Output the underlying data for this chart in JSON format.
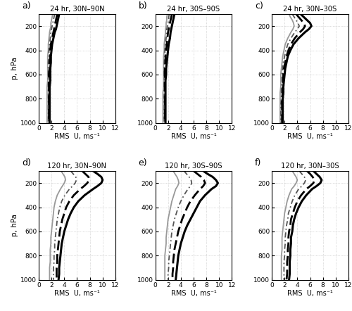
{
  "titles": [
    "24 hr, 30N–90N",
    "24 hr, 30S–90S",
    "24 hr, 30N–30S",
    "120 hr, 30N–90N",
    "120 hr, 30S–90S",
    "120 hr, 30N–30S"
  ],
  "panel_labels": [
    "a)",
    "b)",
    "c)",
    "d)",
    "e)",
    "f)"
  ],
  "pressure_levels": [
    100,
    125,
    150,
    175,
    200,
    225,
    250,
    300,
    350,
    400,
    450,
    500,
    550,
    600,
    650,
    700,
    750,
    800,
    850,
    900,
    950,
    1000
  ],
  "xlabel": "RMS  U, ms⁻¹",
  "ylabel": "p, hPa",
  "xlim": [
    0,
    12
  ],
  "ylim": [
    1000,
    100
  ],
  "xticks": [
    0,
    2,
    4,
    6,
    8,
    10,
    12
  ],
  "yticks": [
    200,
    400,
    600,
    800,
    1000
  ],
  "data": {
    "a": {
      "line1": [
        3.2,
        3.1,
        3.0,
        2.9,
        2.8,
        2.7,
        2.5,
        2.3,
        2.1,
        2.0,
        1.9,
        1.9,
        1.8,
        1.8,
        1.8,
        1.7,
        1.7,
        1.7,
        1.7,
        1.7,
        1.7,
        1.7
      ],
      "line2": [
        2.9,
        2.8,
        2.7,
        2.6,
        2.5,
        2.4,
        2.3,
        2.1,
        1.9,
        1.8,
        1.8,
        1.7,
        1.7,
        1.6,
        1.6,
        1.6,
        1.6,
        1.6,
        1.6,
        1.6,
        1.6,
        1.6
      ],
      "line3": [
        2.5,
        2.4,
        2.3,
        2.2,
        2.1,
        2.0,
        1.9,
        1.8,
        1.7,
        1.6,
        1.6,
        1.5,
        1.5,
        1.5,
        1.5,
        1.5,
        1.5,
        1.5,
        1.5,
        1.5,
        1.5,
        1.5
      ],
      "line4": [
        2.2,
        2.1,
        2.0,
        1.9,
        1.9,
        1.8,
        1.7,
        1.6,
        1.5,
        1.5,
        1.4,
        1.4,
        1.4,
        1.4,
        1.4,
        1.3,
        1.3,
        1.3,
        1.3,
        1.3,
        1.3,
        1.3
      ]
    },
    "b": {
      "line1": [
        3.0,
        2.9,
        2.8,
        2.7,
        2.6,
        2.5,
        2.4,
        2.3,
        2.1,
        2.0,
        1.9,
        1.8,
        1.7,
        1.7,
        1.6,
        1.6,
        1.6,
        1.6,
        1.6,
        1.6,
        1.6,
        1.6
      ],
      "line2": [
        2.6,
        2.5,
        2.4,
        2.3,
        2.2,
        2.1,
        2.0,
        1.9,
        1.8,
        1.7,
        1.6,
        1.6,
        1.5,
        1.5,
        1.5,
        1.5,
        1.5,
        1.5,
        1.5,
        1.5,
        1.5,
        1.5
      ],
      "line3": [
        2.2,
        2.1,
        2.1,
        2.0,
        1.9,
        1.8,
        1.8,
        1.7,
        1.6,
        1.5,
        1.5,
        1.4,
        1.4,
        1.4,
        1.4,
        1.4,
        1.4,
        1.4,
        1.4,
        1.4,
        1.4,
        1.4
      ],
      "line4": [
        1.9,
        1.8,
        1.8,
        1.7,
        1.7,
        1.6,
        1.6,
        1.5,
        1.4,
        1.4,
        1.3,
        1.3,
        1.3,
        1.3,
        1.3,
        1.3,
        1.2,
        1.2,
        1.2,
        1.2,
        1.2,
        1.2
      ]
    },
    "c": {
      "line1": [
        4.5,
        5.0,
        5.5,
        6.0,
        6.2,
        5.8,
        5.2,
        4.2,
        3.4,
        2.9,
        2.5,
        2.3,
        2.1,
        2.0,
        1.9,
        1.8,
        1.8,
        1.7,
        1.7,
        1.7,
        1.7,
        1.7
      ],
      "line2": [
        3.8,
        4.2,
        4.6,
        5.0,
        5.2,
        4.9,
        4.4,
        3.6,
        3.0,
        2.6,
        2.3,
        2.1,
        1.9,
        1.8,
        1.8,
        1.7,
        1.7,
        1.6,
        1.6,
        1.6,
        1.6,
        1.6
      ],
      "line3": [
        3.2,
        3.5,
        3.8,
        4.1,
        4.3,
        4.0,
        3.6,
        3.0,
        2.5,
        2.2,
        2.0,
        1.8,
        1.7,
        1.6,
        1.6,
        1.5,
        1.5,
        1.5,
        1.4,
        1.4,
        1.4,
        1.4
      ],
      "line4": [
        2.7,
        2.9,
        3.2,
        3.4,
        3.5,
        3.3,
        3.0,
        2.5,
        2.1,
        1.9,
        1.7,
        1.6,
        1.5,
        1.4,
        1.4,
        1.4,
        1.3,
        1.3,
        1.3,
        1.3,
        1.3,
        1.3
      ]
    },
    "d": {
      "line1": [
        8.5,
        9.2,
        9.8,
        10.0,
        9.8,
        9.2,
        8.5,
        7.2,
        6.2,
        5.5,
        5.0,
        4.6,
        4.3,
        4.0,
        3.8,
        3.6,
        3.5,
        3.4,
        3.3,
        3.2,
        3.2,
        3.1
      ],
      "line2": [
        6.8,
        7.3,
        7.8,
        7.9,
        7.6,
        7.1,
        6.5,
        5.5,
        4.8,
        4.3,
        4.0,
        3.7,
        3.5,
        3.3,
        3.2,
        3.1,
        3.0,
        2.9,
        2.9,
        2.8,
        2.8,
        2.8
      ],
      "line3": [
        5.0,
        5.4,
        5.8,
        5.9,
        5.7,
        5.3,
        4.8,
        4.1,
        3.6,
        3.3,
        3.1,
        2.9,
        2.8,
        2.7,
        2.6,
        2.5,
        2.5,
        2.4,
        2.4,
        2.3,
        2.3,
        2.3
      ],
      "line4": [
        3.5,
        3.8,
        4.1,
        4.2,
        4.0,
        3.7,
        3.4,
        2.9,
        2.6,
        2.4,
        2.3,
        2.2,
        2.1,
        2.0,
        1.9,
        1.9,
        1.8,
        1.8,
        1.8,
        1.7,
        1.7,
        1.7
      ]
    },
    "e": {
      "line1": [
        7.5,
        8.2,
        9.0,
        9.5,
        9.8,
        9.5,
        8.8,
        7.8,
        7.0,
        6.5,
        6.0,
        5.5,
        5.0,
        4.6,
        4.3,
        4.0,
        3.8,
        3.6,
        3.5,
        3.4,
        3.3,
        3.2
      ],
      "line2": [
        6.0,
        6.6,
        7.2,
        7.6,
        7.8,
        7.5,
        7.0,
        6.2,
        5.5,
        5.0,
        4.6,
        4.2,
        3.9,
        3.6,
        3.4,
        3.2,
        3.0,
        2.9,
        2.8,
        2.8,
        2.7,
        2.7
      ],
      "line3": [
        4.5,
        4.9,
        5.3,
        5.6,
        5.7,
        5.5,
        5.1,
        4.5,
        4.0,
        3.6,
        3.3,
        3.0,
        2.8,
        2.6,
        2.5,
        2.4,
        2.3,
        2.2,
        2.1,
        2.1,
        2.0,
        2.0
      ],
      "line4": [
        2.8,
        3.1,
        3.4,
        3.6,
        3.7,
        3.5,
        3.2,
        2.9,
        2.6,
        2.4,
        2.2,
        2.0,
        1.9,
        1.8,
        1.7,
        1.7,
        1.6,
        1.5,
        1.5,
        1.5,
        1.5,
        1.5
      ]
    },
    "f": {
      "line1": [
        6.5,
        7.0,
        7.5,
        7.8,
        7.6,
        7.0,
        6.3,
        5.4,
        4.7,
        4.2,
        3.8,
        3.5,
        3.3,
        3.2,
        3.0,
        3.0,
        2.9,
        2.9,
        2.8,
        2.8,
        2.8,
        2.7
      ],
      "line2": [
        5.5,
        6.0,
        6.4,
        6.7,
        6.5,
        6.0,
        5.4,
        4.6,
        4.0,
        3.6,
        3.3,
        3.0,
        2.9,
        2.7,
        2.6,
        2.6,
        2.5,
        2.5,
        2.4,
        2.4,
        2.4,
        2.3
      ],
      "line3": [
        4.3,
        4.7,
        5.1,
        5.3,
        5.1,
        4.7,
        4.2,
        3.6,
        3.2,
        2.9,
        2.6,
        2.5,
        2.3,
        2.2,
        2.1,
        2.1,
        2.0,
        2.0,
        1.9,
        1.9,
        1.9,
        1.9
      ],
      "line4": [
        3.2,
        3.5,
        3.8,
        4.0,
        3.8,
        3.5,
        3.1,
        2.7,
        2.4,
        2.2,
        2.0,
        1.9,
        1.8,
        1.7,
        1.6,
        1.6,
        1.6,
        1.5,
        1.5,
        1.5,
        1.5,
        1.5
      ]
    }
  },
  "line_styles": {
    "line1": {
      "color": "#000000",
      "lw": 2.2,
      "dashes": null
    },
    "line2": {
      "color": "#000000",
      "lw": 2.0,
      "dashes": [
        5,
        2
      ]
    },
    "line3": {
      "color": "#555555",
      "lw": 1.3,
      "dashes": [
        4,
        2,
        1,
        2
      ]
    },
    "line4": {
      "color": "#999999",
      "lw": 1.3,
      "dashes": null
    }
  }
}
